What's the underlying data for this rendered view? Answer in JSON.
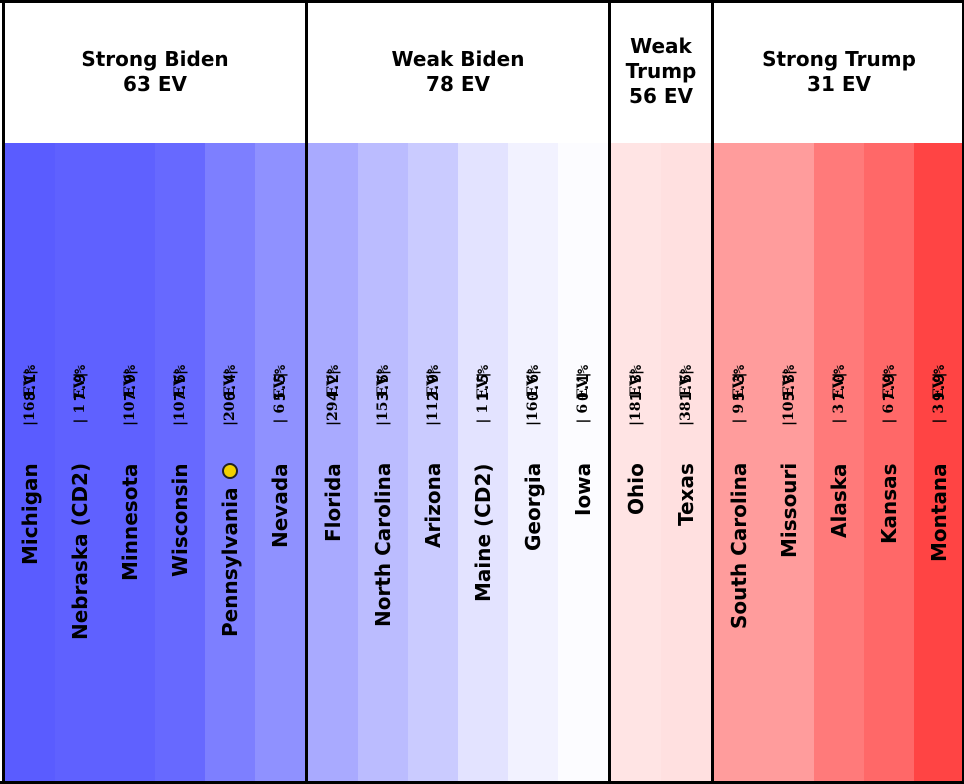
{
  "chart_data": {
    "type": "table",
    "groups": [
      {
        "name": "Strong Biden",
        "ev": "63 EV",
        "states": [
          {
            "state": "Michigan",
            "ev_label": "|16 EV|",
            "margin": "8.1%",
            "color": "#5a5cff"
          },
          {
            "state": "Nebraska (CD2)",
            "ev_label": "| 1 EV|",
            "margin": "7.9%",
            "color": "#5f61ff"
          },
          {
            "state": "Minnesota",
            "ev_label": "|10 EV|",
            "margin": "7.9%",
            "color": "#5f61ff"
          },
          {
            "state": "Wisconsin",
            "ev_label": "|10 EV|",
            "margin": "7.5%",
            "color": "#6769ff"
          },
          {
            "state": "Pennsylvania",
            "ev_label": "|20 EV|",
            "margin": "6.4%",
            "color": "#7d7fff",
            "tipping_point": true
          },
          {
            "state": "Nevada",
            "ev_label": "| 6 EV|",
            "margin": "5.5%",
            "color": "#8f91ff"
          }
        ]
      },
      {
        "name": "Weak Biden",
        "ev": "78 EV",
        "states": [
          {
            "state": "Florida",
            "ev_label": "|29 EV|",
            "margin": "4.2%",
            "color": "#a9aaff"
          },
          {
            "state": "North Carolina",
            "ev_label": "|15 EV|",
            "margin": "3.5%",
            "color": "#bbbcff"
          },
          {
            "state": "Arizona",
            "ev_label": "|11 EV|",
            "margin": "2.9%",
            "color": "#cacbff"
          },
          {
            "state": "Maine (CD2)",
            "ev_label": "| 1 EV|",
            "margin": "1.5%",
            "color": "#e3e3ff"
          },
          {
            "state": "Georgia",
            "ev_label": "|16 EV|",
            "margin": "0.6%",
            "color": "#f2f2ff"
          },
          {
            "state": "Iowa",
            "ev_label": "| 6 EV|",
            "margin": "0.1%",
            "color": "#fcfcff"
          }
        ]
      },
      {
        "name": "Weak Trump",
        "ev": "56 EV",
        "states": [
          {
            "state": "Ohio",
            "ev_label": "|18 EV|",
            "margin": "1.3%",
            "color": "#ffe4e4"
          },
          {
            "state": "Texas",
            "ev_label": "|38 EV|",
            "margin": "1.5%",
            "color": "#ffe0e0"
          }
        ]
      },
      {
        "name": "Strong Trump",
        "ev": "31 EV",
        "states": [
          {
            "state": "South Carolina",
            "ev_label": "| 9 EV|",
            "margin": "5.3%",
            "color": "#ff9c9c"
          },
          {
            "state": "Missouri",
            "ev_label": "|10 EV|",
            "margin": "5.3%",
            "color": "#ff9c9c"
          },
          {
            "state": "Alaska",
            "ev_label": "| 3 EV|",
            "margin": "7.0%",
            "color": "#ff7a7a"
          },
          {
            "state": "Kansas",
            "ev_label": "| 6 EV|",
            "margin": "7.9%",
            "color": "#ff6868"
          },
          {
            "state": "Montana",
            "ev_label": "| 3 EV|",
            "margin": "9.9%",
            "color": "#ff4444"
          }
        ]
      }
    ]
  }
}
